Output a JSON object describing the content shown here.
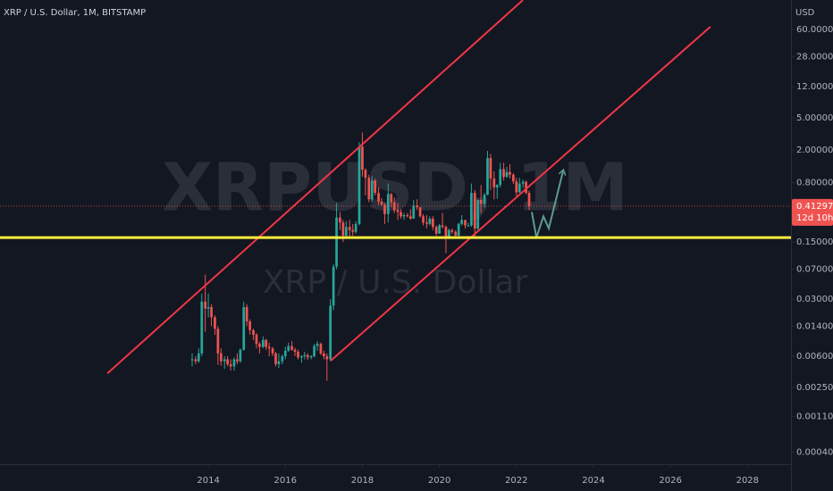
{
  "chart_data": {
    "type": "candlestick",
    "title": "XRP / U.S. Dollar, 1M, BITSTAMP",
    "watermark": "XRPUSD, 1M",
    "watermark_subtitle": "XRP / U.S. Dollar",
    "currency": "USD",
    "countdown": "12d 10h",
    "log_scale": true,
    "up_color": "#26a69a",
    "down_color": "#ef5350",
    "xlim": [
      2008.59,
      2029.13
    ],
    "ylim": [
      0.000324,
      138
    ],
    "xticks": [
      2014,
      2016,
      2018,
      2020,
      2022,
      2024,
      2026,
      2028
    ],
    "yticks": [
      {
        "value": 60,
        "label": "60.00000"
      },
      {
        "value": 28,
        "label": "28.00000"
      },
      {
        "value": 12,
        "label": "12.00000"
      },
      {
        "value": 5,
        "label": "5.00000"
      },
      {
        "value": 2,
        "label": "2.00000"
      },
      {
        "value": 0.8,
        "label": "0.80000"
      },
      {
        "value": 0.15,
        "label": "0.15000"
      },
      {
        "value": 0.07,
        "label": "0.07000"
      },
      {
        "value": 0.03,
        "label": "0.03000"
      },
      {
        "value": 0.014,
        "label": "0.01400"
      },
      {
        "value": 0.006,
        "label": "0.00600"
      },
      {
        "value": 0.0025,
        "label": "0.00250"
      },
      {
        "value": 0.0011,
        "label": "0.00110"
      },
      {
        "value": 0.0004,
        "label": "0.00040"
      }
    ],
    "x": [
      2013.58,
      2013.67,
      2013.75,
      2013.83,
      2013.92,
      2014.0,
      2014.08,
      2014.17,
      2014.25,
      2014.33,
      2014.42,
      2014.5,
      2014.58,
      2014.67,
      2014.75,
      2014.83,
      2014.92,
      2015.0,
      2015.08,
      2015.17,
      2015.25,
      2015.33,
      2015.42,
      2015.5,
      2015.58,
      2015.67,
      2015.75,
      2015.83,
      2015.92,
      2016.0,
      2016.08,
      2016.17,
      2016.25,
      2016.33,
      2016.42,
      2016.5,
      2016.58,
      2016.67,
      2016.75,
      2016.83,
      2016.92,
      2017.0,
      2017.08,
      2017.17,
      2017.25,
      2017.33,
      2017.42,
      2017.5,
      2017.58,
      2017.67,
      2017.75,
      2017.83,
      2017.92,
      2018.0,
      2018.08,
      2018.17,
      2018.25,
      2018.33,
      2018.42,
      2018.5,
      2018.58,
      2018.67,
      2018.75,
      2018.83,
      2018.92,
      2019.0,
      2019.08,
      2019.17,
      2019.25,
      2019.33,
      2019.42,
      2019.5,
      2019.58,
      2019.67,
      2019.75,
      2019.83,
      2019.92,
      2020.0,
      2020.08,
      2020.17,
      2020.25,
      2020.33,
      2020.42,
      2020.5,
      2020.58,
      2020.67,
      2020.75,
      2020.83,
      2020.92,
      2021.0,
      2021.08,
      2021.17,
      2021.25,
      2021.33,
      2021.42,
      2021.5,
      2021.58,
      2021.67,
      2021.75,
      2021.83,
      2021.92,
      2022.0,
      2022.08,
      2022.17,
      2022.25,
      2022.33
    ],
    "open": [
      0.0055,
      0.0055,
      0.0052,
      0.0065,
      0.028,
      0.023,
      0.024,
      0.018,
      0.013,
      0.0065,
      0.0052,
      0.0055,
      0.0048,
      0.0045,
      0.0055,
      0.0052,
      0.0072,
      0.024,
      0.016,
      0.0125,
      0.011,
      0.0085,
      0.0078,
      0.0095,
      0.0078,
      0.0075,
      0.0065,
      0.0048,
      0.0052,
      0.006,
      0.007,
      0.008,
      0.0072,
      0.0068,
      0.0058,
      0.006,
      0.0062,
      0.0058,
      0.006,
      0.008,
      0.0085,
      0.0065,
      0.006,
      0.0055,
      0.025,
      0.075,
      0.3,
      0.26,
      0.18,
      0.23,
      0.21,
      0.2,
      0.25,
      2.2,
      1.15,
      0.92,
      0.5,
      0.85,
      0.6,
      0.47,
      0.43,
      0.33,
      0.58,
      0.46,
      0.37,
      0.35,
      0.31,
      0.32,
      0.31,
      0.29,
      0.42,
      0.4,
      0.31,
      0.26,
      0.25,
      0.29,
      0.23,
      0.19,
      0.24,
      0.23,
      0.17,
      0.21,
      0.2,
      0.18,
      0.25,
      0.28,
      0.24,
      0.24,
      0.6,
      0.22,
      0.49,
      0.44,
      0.57,
      1.6,
      0.9,
      0.7,
      0.75,
      1.17,
      0.94,
      1.08,
      1.0,
      0.83,
      0.61,
      0.78,
      0.82,
      0.6
    ],
    "high": [
      0.0065,
      0.006,
      0.0075,
      0.035,
      0.06,
      0.035,
      0.026,
      0.019,
      0.014,
      0.0075,
      0.006,
      0.006,
      0.0055,
      0.0058,
      0.0065,
      0.0075,
      0.028,
      0.026,
      0.017,
      0.013,
      0.0115,
      0.009,
      0.0105,
      0.0098,
      0.0088,
      0.0078,
      0.0068,
      0.0065,
      0.0063,
      0.0078,
      0.0088,
      0.0092,
      0.0076,
      0.0072,
      0.0062,
      0.0068,
      0.0065,
      0.0062,
      0.0085,
      0.0092,
      0.0088,
      0.007,
      0.0065,
      0.03,
      0.08,
      0.45,
      0.35,
      0.28,
      0.27,
      0.28,
      0.25,
      0.27,
      2.5,
      3.3,
      1.2,
      1.0,
      0.96,
      0.9,
      0.7,
      0.52,
      0.45,
      0.78,
      0.6,
      0.53,
      0.45,
      0.38,
      0.34,
      0.34,
      0.38,
      0.49,
      0.5,
      0.4,
      0.33,
      0.32,
      0.31,
      0.31,
      0.24,
      0.25,
      0.34,
      0.24,
      0.22,
      0.22,
      0.21,
      0.26,
      0.32,
      0.28,
      0.26,
      0.78,
      0.65,
      0.5,
      0.75,
      0.6,
      1.96,
      1.8,
      1.1,
      0.77,
      1.4,
      1.4,
      1.25,
      1.35,
      1.05,
      0.92,
      0.92,
      0.87,
      0.85,
      0.64
    ],
    "low": [
      0.0045,
      0.0048,
      0.005,
      0.006,
      0.012,
      0.018,
      0.014,
      0.011,
      0.0047,
      0.0046,
      0.0042,
      0.0045,
      0.004,
      0.004,
      0.0048,
      0.005,
      0.007,
      0.014,
      0.011,
      0.0095,
      0.0075,
      0.0065,
      0.0075,
      0.0072,
      0.006,
      0.006,
      0.0045,
      0.0043,
      0.0048,
      0.0055,
      0.0068,
      0.007,
      0.006,
      0.0055,
      0.005,
      0.0055,
      0.0054,
      0.0055,
      0.0058,
      0.007,
      0.0062,
      0.0055,
      0.003,
      0.0052,
      0.022,
      0.07,
      0.21,
      0.15,
      0.17,
      0.17,
      0.18,
      0.19,
      0.24,
      0.95,
      0.56,
      0.46,
      0.47,
      0.56,
      0.43,
      0.42,
      0.25,
      0.26,
      0.4,
      0.34,
      0.28,
      0.29,
      0.28,
      0.3,
      0.28,
      0.29,
      0.37,
      0.3,
      0.24,
      0.22,
      0.24,
      0.21,
      0.18,
      0.19,
      0.22,
      0.11,
      0.17,
      0.19,
      0.17,
      0.17,
      0.24,
      0.22,
      0.23,
      0.23,
      0.17,
      0.21,
      0.34,
      0.4,
      0.56,
      0.65,
      0.5,
      0.51,
      0.7,
      0.85,
      0.92,
      0.9,
      0.77,
      0.55,
      0.6,
      0.69,
      0.58,
      0.37
    ],
    "close": [
      0.0055,
      0.0052,
      0.0065,
      0.028,
      0.023,
      0.024,
      0.018,
      0.013,
      0.0065,
      0.0052,
      0.0055,
      0.0048,
      0.0045,
      0.0055,
      0.0052,
      0.0072,
      0.024,
      0.016,
      0.0125,
      0.011,
      0.0085,
      0.0078,
      0.0095,
      0.0078,
      0.0075,
      0.0065,
      0.0048,
      0.0052,
      0.006,
      0.007,
      0.008,
      0.0072,
      0.0068,
      0.0058,
      0.006,
      0.0062,
      0.0058,
      0.006,
      0.008,
      0.0085,
      0.0065,
      0.006,
      0.0055,
      0.025,
      0.075,
      0.3,
      0.26,
      0.18,
      0.23,
      0.21,
      0.2,
      0.25,
      2.2,
      1.15,
      0.92,
      0.5,
      0.85,
      0.6,
      0.47,
      0.43,
      0.33,
      0.58,
      0.46,
      0.37,
      0.35,
      0.31,
      0.32,
      0.31,
      0.29,
      0.42,
      0.4,
      0.31,
      0.26,
      0.25,
      0.29,
      0.23,
      0.19,
      0.24,
      0.23,
      0.17,
      0.21,
      0.2,
      0.18,
      0.25,
      0.28,
      0.24,
      0.24,
      0.6,
      0.22,
      0.49,
      0.44,
      0.57,
      1.6,
      0.9,
      0.7,
      0.75,
      1.17,
      0.94,
      1.08,
      1.0,
      0.83,
      0.61,
      0.78,
      0.82,
      0.6,
      0.41297
    ],
    "lines": [
      {
        "color": "#f23645",
        "x": [
          2011.38,
          2022.17
        ],
        "y": [
          0.0037,
          138
        ]
      },
      {
        "color": "#f23645",
        "x": [
          2017.18,
          2027.04
        ],
        "y": [
          0.0053,
          65
        ]
      },
      {
        "color": "#5b9c8f",
        "x": [
          2022.4,
          2022.52,
          2022.7,
          2022.84,
          2023.21
        ],
        "y": [
          0.35,
          0.17,
          0.31,
          0.22,
          1.1
        ]
      }
    ],
    "horizontal_line": {
      "color": "#ffeb3b",
      "price": 0.17
    }
  }
}
